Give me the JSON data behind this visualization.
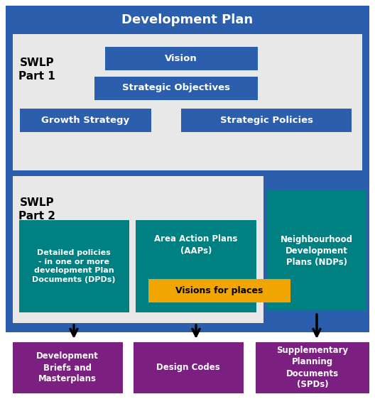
{
  "colors": {
    "blue_bg": "#2B5FAD",
    "blue_box": "#2B5FAD",
    "light_gray": "#E8E8E8",
    "teal": "#008080",
    "purple": "#7B2080",
    "orange": "#F0A500",
    "white": "#FFFFFF",
    "black": "#000000"
  },
  "title": "Development Plan",
  "swlp1_label": "SWLP\nPart 1",
  "swlp2_label": "SWLP\nPart 2",
  "vision": "Vision",
  "strategic_obj": "Strategic Objectives",
  "growth": "Growth Strategy",
  "strategic_pol": "Strategic Policies",
  "dpd": "Detailed policies\n- in one or more\ndevelopment Plan\nDocuments (DPDs)",
  "aap": "Area Action Plans\n(AAPs)",
  "ndp": "Neighbourhood\nDevelopment\nPlans (NDPs)",
  "visions": "Visions for places",
  "dev_briefs": "Development\nBriefs and\nMasterplans",
  "design_codes": "Design Codes",
  "spd": "Supplementary\nPlanning\nDocuments\n(SPDs)"
}
